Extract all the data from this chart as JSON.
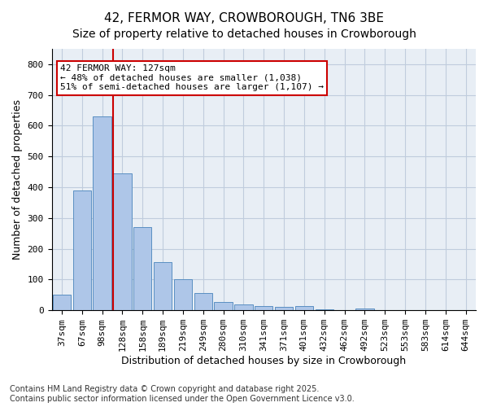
{
  "title1": "42, FERMOR WAY, CROWBOROUGH, TN6 3BE",
  "title2": "Size of property relative to detached houses in Crowborough",
  "xlabel": "Distribution of detached houses by size in Crowborough",
  "ylabel": "Number of detached properties",
  "bar_values": [
    50,
    390,
    630,
    445,
    270,
    158,
    100,
    55,
    28,
    18,
    13,
    11,
    14,
    4,
    0,
    5,
    0,
    0,
    0,
    0,
    0
  ],
  "bar_labels": [
    "37sqm",
    "67sqm",
    "98sqm",
    "128sqm",
    "158sqm",
    "189sqm",
    "219sqm",
    "249sqm",
    "280sqm",
    "310sqm",
    "341sqm",
    "371sqm",
    "401sqm",
    "432sqm",
    "462sqm",
    "492sqm",
    "523sqm",
    "553sqm",
    "583sqm",
    "614sqm",
    "644sqm"
  ],
  "bar_color": "#aec6e8",
  "bar_edge_color": "#5a8fc2",
  "grid_color": "#c0ccdd",
  "background_color": "#e8eef5",
  "vline_pos": 2.55,
  "vline_color": "#cc0000",
  "annotation_text": "42 FERMOR WAY: 127sqm\n← 48% of detached houses are smaller (1,038)\n51% of semi-detached houses are larger (1,107) →",
  "annotation_box_color": "#ffffff",
  "annotation_box_edge": "#cc0000",
  "ylim": [
    0,
    850
  ],
  "yticks": [
    0,
    100,
    200,
    300,
    400,
    500,
    600,
    700,
    800
  ],
  "footer": "Contains HM Land Registry data © Crown copyright and database right 2025.\nContains public sector information licensed under the Open Government Licence v3.0.",
  "title_fontsize": 11,
  "subtitle_fontsize": 10,
  "axis_label_fontsize": 9,
  "tick_fontsize": 8,
  "annotation_fontsize": 8,
  "footer_fontsize": 7
}
